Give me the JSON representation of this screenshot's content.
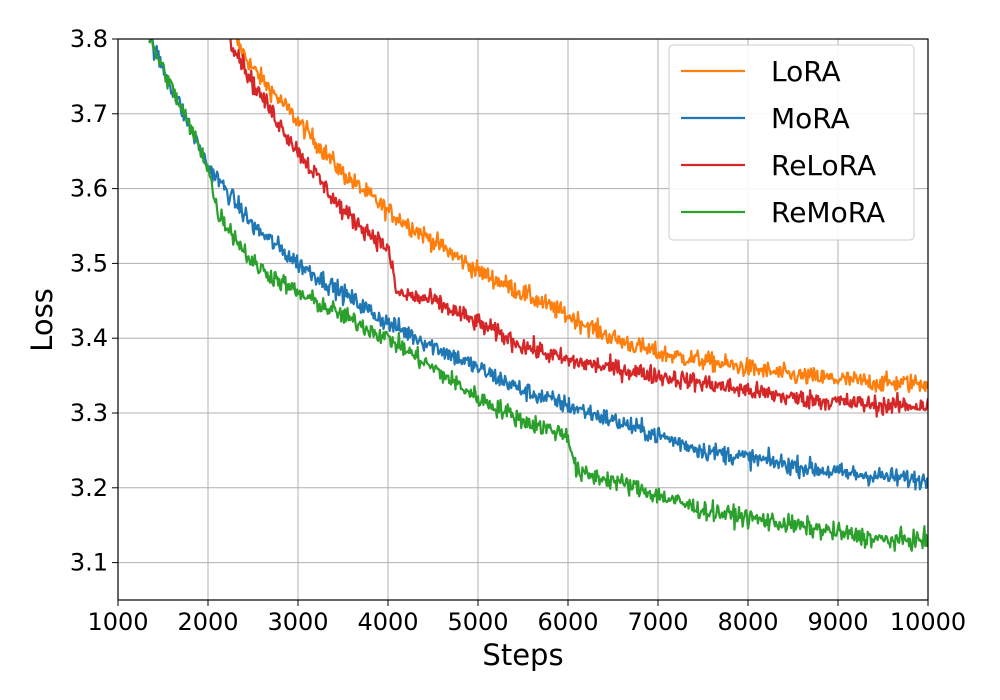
{
  "chart_data": {
    "type": "line",
    "title": "",
    "xlabel": "Steps",
    "ylabel": "Loss",
    "xlim": [
      1000,
      10000
    ],
    "ylim": [
      3.05,
      3.8
    ],
    "xticks": [
      "1000",
      "2000",
      "3000",
      "4000",
      "5000",
      "6000",
      "7000",
      "8000",
      "9000",
      "10000"
    ],
    "yticks": [
      "3.1",
      "3.2",
      "3.3",
      "3.4",
      "3.5",
      "3.6",
      "3.7",
      "3.8"
    ],
    "grid": true,
    "legend_position": "top-right",
    "x": [
      1000,
      1500,
      2000,
      2500,
      3000,
      3500,
      4000,
      4500,
      5000,
      5500,
      6000,
      6500,
      7000,
      7500,
      8000,
      8500,
      9000,
      9500,
      10000
    ],
    "series": [
      {
        "name": "LoRA",
        "color": "#ff7f0e",
        "x": [
          2300,
          2500,
          3000,
          3500,
          4000,
          4500,
          5000,
          5500,
          6000,
          6500,
          7000,
          7500,
          8000,
          8500,
          9000,
          9500,
          10000
        ],
        "values": [
          3.8,
          3.76,
          3.69,
          3.62,
          3.57,
          3.53,
          3.49,
          3.46,
          3.43,
          3.4,
          3.38,
          3.37,
          3.36,
          3.35,
          3.345,
          3.34,
          3.34
        ]
      },
      {
        "name": "MoRA",
        "color": "#1f77b4",
        "x": [
          1350,
          1500,
          2000,
          2500,
          3000,
          3500,
          4000,
          4500,
          5000,
          5500,
          6000,
          6500,
          7000,
          7500,
          8000,
          8500,
          9000,
          9500,
          10000
        ],
        "values": [
          3.8,
          3.76,
          3.63,
          3.55,
          3.5,
          3.46,
          3.42,
          3.39,
          3.36,
          3.33,
          3.31,
          3.29,
          3.27,
          3.25,
          3.24,
          3.23,
          3.22,
          3.215,
          3.21
        ]
      },
      {
        "name": "ReLoRA",
        "color": "#d62728",
        "x": [
          2250,
          2500,
          3000,
          3500,
          4000,
          4100,
          4500,
          5000,
          5500,
          6000,
          6500,
          7000,
          7500,
          8000,
          8500,
          9000,
          9500,
          10000
        ],
        "values": [
          3.8,
          3.74,
          3.65,
          3.57,
          3.52,
          3.46,
          3.45,
          3.42,
          3.39,
          3.37,
          3.36,
          3.35,
          3.34,
          3.33,
          3.32,
          3.315,
          3.31,
          3.31
        ]
      },
      {
        "name": "ReMoRA",
        "color": "#2ca02c",
        "x": [
          1350,
          1500,
          2000,
          2100,
          2500,
          3000,
          3500,
          4000,
          4500,
          5000,
          5500,
          6000,
          6100,
          6500,
          7000,
          7500,
          8000,
          8500,
          9000,
          9500,
          10000
        ],
        "values": [
          3.8,
          3.76,
          3.63,
          3.57,
          3.5,
          3.46,
          3.43,
          3.4,
          3.36,
          3.32,
          3.29,
          3.27,
          3.22,
          3.21,
          3.19,
          3.17,
          3.16,
          3.15,
          3.14,
          3.13,
          3.13
        ]
      }
    ]
  }
}
